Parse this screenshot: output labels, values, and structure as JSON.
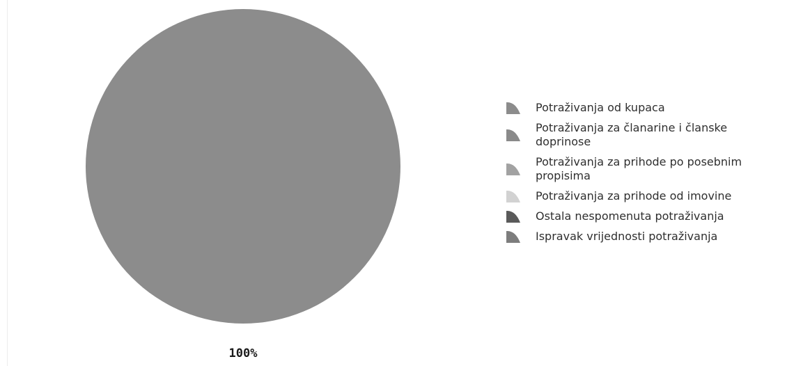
{
  "chart_data": {
    "type": "pie",
    "slices": [
      {
        "label": "Potraživanja od kupaca",
        "value": 100,
        "color": "#8c8c8c"
      },
      {
        "label": "Potraživanja za članarine i članske doprinose",
        "value": 0,
        "color": "#8a8a8a"
      },
      {
        "label": "Potraživanja za prihode po posebnim propisima",
        "value": 0,
        "color": "#a2a2a2"
      },
      {
        "label": "Potraživanja za prihode od imovine",
        "value": 0,
        "color": "#d2d2d2"
      },
      {
        "label": "Ostala nespomenuta potraživanja",
        "value": 0,
        "color": "#5a5a5a"
      },
      {
        "label": "Ispravak vrijednosti potraživanja",
        "value": 0,
        "color": "#7d7d7d"
      }
    ],
    "data_labels": [
      "100%"
    ],
    "legend_position": "right"
  }
}
